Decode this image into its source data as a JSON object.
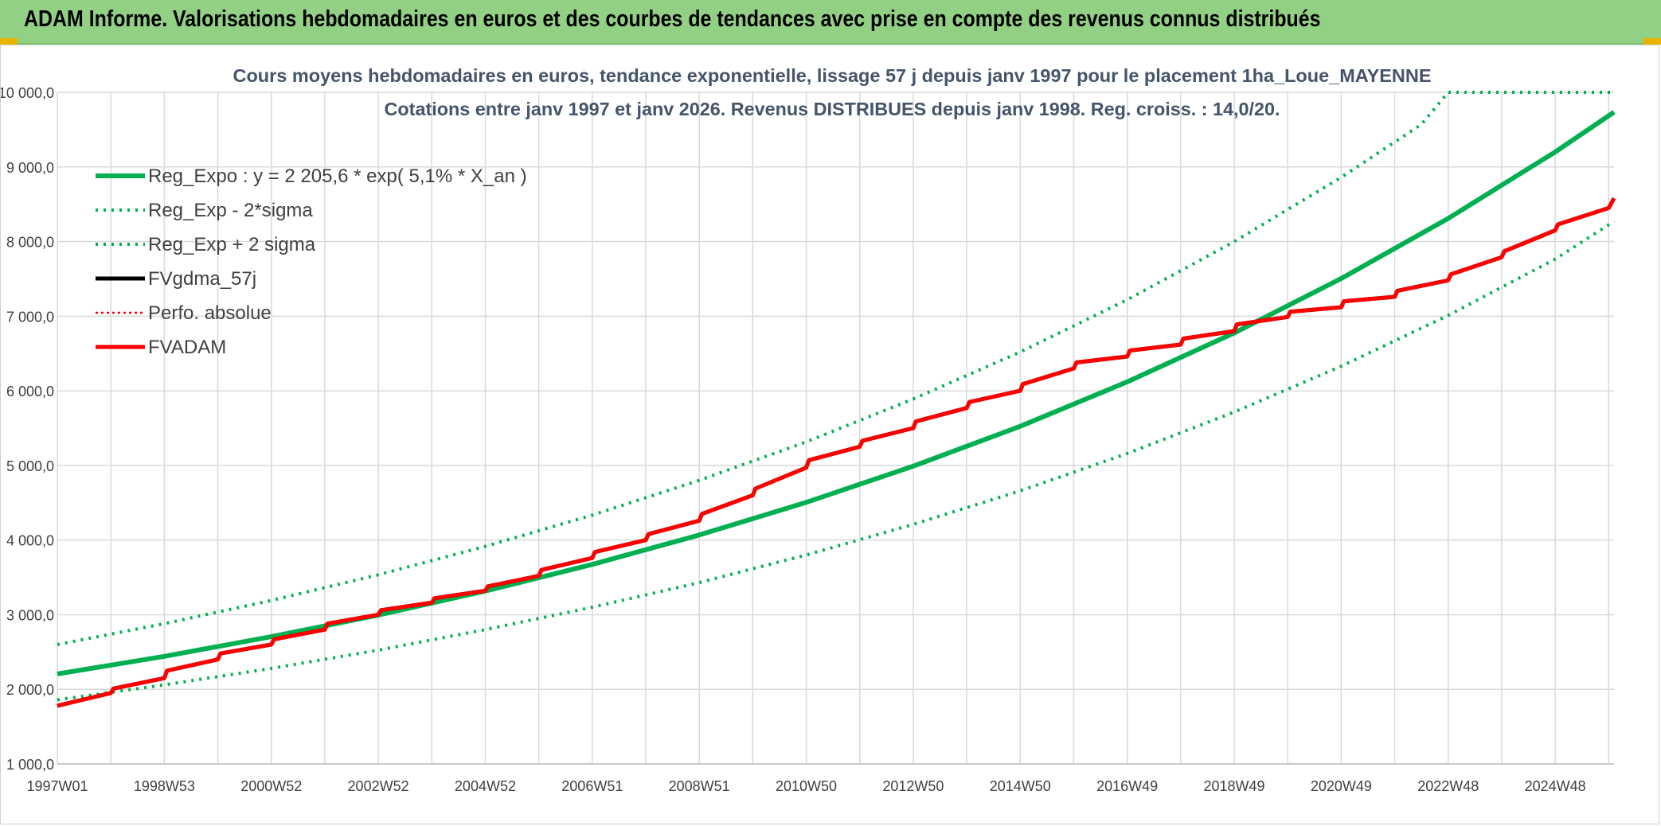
{
  "header": {
    "title": "ADAM Informe. Valorisations hebdomadaires en euros et des courbes de tendances avec prise en compte des revenus connus distribués",
    "band_color": "#92d084"
  },
  "chart_data": {
    "type": "line",
    "title": "Cours moyens hebdomadaires en euros, tendance exponentielle, lissage 57 j depuis janv 1997 pour le placement 1ha_Loue_MAYENNE",
    "subtitle": "Cotations entre janv 1997 et janv 2026. Revenus DISTRIBUES depuis janv 1998. Reg. croiss. : 14,0/20.",
    "xlabel": "",
    "ylabel": "",
    "ylim": [
      1000,
      10000
    ],
    "yticks": [
      "1 000,0",
      "2 000,0",
      "3 000,0",
      "4 000,0",
      "5 000,0",
      "6 000,0",
      "7 000,0",
      "8 000,0",
      "9 000,0",
      "10 000,0"
    ],
    "xlim": [
      1997.0,
      2026.1
    ],
    "xticks": [
      {
        "x": 1997.0,
        "label": "1997W01"
      },
      {
        "x": 1999.0,
        "label": "1998W53"
      },
      {
        "x": 2001.0,
        "label": "2000W52"
      },
      {
        "x": 2003.0,
        "label": "2002W52"
      },
      {
        "x": 2005.0,
        "label": "2004W52"
      },
      {
        "x": 2007.0,
        "label": "2006W51"
      },
      {
        "x": 2009.0,
        "label": "2008W51"
      },
      {
        "x": 2011.0,
        "label": "2010W50"
      },
      {
        "x": 2013.0,
        "label": "2012W50"
      },
      {
        "x": 2015.0,
        "label": "2014W50"
      },
      {
        "x": 2017.0,
        "label": "2016W49"
      },
      {
        "x": 2019.0,
        "label": "2018W49"
      },
      {
        "x": 2021.0,
        "label": "2020W49"
      },
      {
        "x": 2023.0,
        "label": "2022W48"
      },
      {
        "x": 2025.0,
        "label": "2024W48"
      }
    ],
    "grid": true,
    "legend_position": "top-left",
    "series": [
      {
        "name": "Reg_Expo : y = 2 205,6 * exp( 5,1% *  X_an )",
        "color": "#00b050",
        "style": "solid",
        "x": [
          1997,
          1999,
          2001,
          2003,
          2005,
          2007,
          2009,
          2011,
          2013,
          2015,
          2017,
          2019,
          2021,
          2023,
          2025,
          2026.1
        ],
        "y": [
          2205.6,
          2442,
          2705,
          2995,
          3317,
          3673,
          4068,
          4505,
          4990,
          5525,
          6120,
          6775,
          7505,
          8310,
          9200,
          9735
        ]
      },
      {
        "name": "Reg_Exp - 2*sigma",
        "color": "#00b050",
        "style": "dotted",
        "x": [
          1997,
          1999,
          2001,
          2003,
          2005,
          2007,
          2009,
          2011,
          2013,
          2015,
          2017,
          2019,
          2021,
          2023,
          2025,
          2026.1
        ],
        "y": [
          1860,
          2060,
          2280,
          2525,
          2800,
          3100,
          3430,
          3800,
          4210,
          4660,
          5160,
          5715,
          6330,
          7010,
          7765,
          8270
        ]
      },
      {
        "name": "Reg_Exp + 2 sigma",
        "color": "#00b050",
        "style": "dotted",
        "x": [
          1997,
          1999,
          2001,
          2003,
          2005,
          2007,
          2009,
          2011,
          2013,
          2015,
          2017,
          2019,
          2021,
          2022.5,
          2023,
          2025,
          2026.1
        ],
        "y": [
          2600,
          2880,
          3190,
          3535,
          3915,
          4335,
          4800,
          5315,
          5890,
          6520,
          7220,
          8000,
          8860,
          9570,
          10000,
          10000,
          10000
        ]
      },
      {
        "name": "FVgdma_57j",
        "color": "#000000",
        "style": "solid",
        "x": [
          1997.0,
          1998.0,
          1998.05,
          1999.0,
          1999.05,
          2000.0,
          2000.05,
          2001.0,
          2001.05,
          2002.0,
          2002.05,
          2003.0,
          2003.05,
          2004.0,
          2004.05,
          2005.0,
          2005.05,
          2006.0,
          2006.05,
          2007.0,
          2007.05,
          2008.0,
          2008.05,
          2009.0,
          2009.05,
          2010.0,
          2010.05,
          2011.0,
          2011.05,
          2012.0,
          2012.05,
          2013.0,
          2013.05,
          2014.0,
          2014.05,
          2015.0,
          2015.05,
          2016.0,
          2016.05,
          2017.0,
          2017.05,
          2018.0,
          2018.05,
          2019.0,
          2019.05,
          2020.0,
          2020.05,
          2021.0,
          2021.05,
          2022.0,
          2022.05,
          2023.0,
          2023.05,
          2024.0,
          2024.05,
          2025.0,
          2025.05,
          2026.0,
          2026.1
        ],
        "y": [
          1780,
          1950,
          2010,
          2150,
          2250,
          2400,
          2480,
          2600,
          2670,
          2800,
          2880,
          3000,
          3060,
          3160,
          3220,
          3320,
          3380,
          3520,
          3600,
          3760,
          3840,
          4000,
          4080,
          4260,
          4350,
          4600,
          4690,
          4970,
          5070,
          5250,
          5330,
          5500,
          5590,
          5770,
          5850,
          6000,
          6090,
          6300,
          6380,
          6460,
          6540,
          6620,
          6700,
          6800,
          6890,
          6990,
          7060,
          7120,
          7200,
          7260,
          7340,
          7480,
          7560,
          7790,
          7870,
          8150,
          8230,
          8450,
          8580
        ]
      },
      {
        "name": "Perfo. absolue",
        "color": "#ff0000",
        "style": "dotted",
        "x": [
          1997.0,
          1998.0,
          1998.05,
          1999.0,
          1999.05,
          2000.0,
          2000.05,
          2001.0,
          2001.05,
          2002.0,
          2002.05,
          2003.0,
          2003.05,
          2004.0,
          2004.05,
          2005.0,
          2005.05,
          2006.0,
          2006.05,
          2007.0,
          2007.05,
          2008.0,
          2008.05,
          2009.0,
          2009.05,
          2010.0,
          2010.05,
          2011.0,
          2011.05,
          2012.0,
          2012.05,
          2013.0,
          2013.05,
          2014.0,
          2014.05,
          2015.0,
          2015.05,
          2016.0,
          2016.05,
          2017.0,
          2017.05,
          2018.0,
          2018.05,
          2019.0,
          2019.05,
          2020.0,
          2020.05,
          2021.0,
          2021.05,
          2022.0,
          2022.05,
          2023.0,
          2023.05,
          2024.0,
          2024.05,
          2025.0,
          2025.05,
          2026.0,
          2026.1
        ],
        "y": [
          1780,
          1950,
          2010,
          2150,
          2250,
          2400,
          2480,
          2600,
          2670,
          2800,
          2880,
          3000,
          3060,
          3160,
          3220,
          3320,
          3380,
          3520,
          3600,
          3760,
          3840,
          4000,
          4080,
          4260,
          4350,
          4600,
          4690,
          4970,
          5070,
          5250,
          5330,
          5500,
          5590,
          5770,
          5850,
          6000,
          6090,
          6300,
          6380,
          6460,
          6540,
          6620,
          6700,
          6800,
          6890,
          6990,
          7060,
          7120,
          7200,
          7260,
          7340,
          7480,
          7560,
          7790,
          7870,
          8150,
          8230,
          8450,
          8580
        ]
      },
      {
        "name": "FVADAM",
        "color": "#ff0000",
        "style": "solid",
        "x": [
          1997.0,
          1998.0,
          1998.05,
          1999.0,
          1999.05,
          2000.0,
          2000.05,
          2001.0,
          2001.05,
          2002.0,
          2002.05,
          2003.0,
          2003.05,
          2004.0,
          2004.05,
          2005.0,
          2005.05,
          2006.0,
          2006.05,
          2007.0,
          2007.05,
          2008.0,
          2008.05,
          2009.0,
          2009.05,
          2010.0,
          2010.05,
          2011.0,
          2011.05,
          2012.0,
          2012.05,
          2013.0,
          2013.05,
          2014.0,
          2014.05,
          2015.0,
          2015.05,
          2016.0,
          2016.05,
          2017.0,
          2017.05,
          2018.0,
          2018.05,
          2019.0,
          2019.05,
          2020.0,
          2020.05,
          2021.0,
          2021.05,
          2022.0,
          2022.05,
          2023.0,
          2023.05,
          2024.0,
          2024.05,
          2025.0,
          2025.05,
          2026.0,
          2026.1
        ],
        "y": [
          1780,
          1950,
          2010,
          2150,
          2250,
          2400,
          2480,
          2600,
          2670,
          2800,
          2880,
          3000,
          3060,
          3160,
          3220,
          3320,
          3380,
          3520,
          3600,
          3760,
          3840,
          4000,
          4080,
          4260,
          4350,
          4600,
          4690,
          4970,
          5070,
          5250,
          5330,
          5500,
          5590,
          5770,
          5850,
          6000,
          6090,
          6300,
          6380,
          6460,
          6540,
          6620,
          6700,
          6800,
          6890,
          6990,
          7060,
          7120,
          7200,
          7260,
          7340,
          7480,
          7560,
          7790,
          7870,
          8150,
          8230,
          8450,
          8580
        ]
      }
    ]
  }
}
